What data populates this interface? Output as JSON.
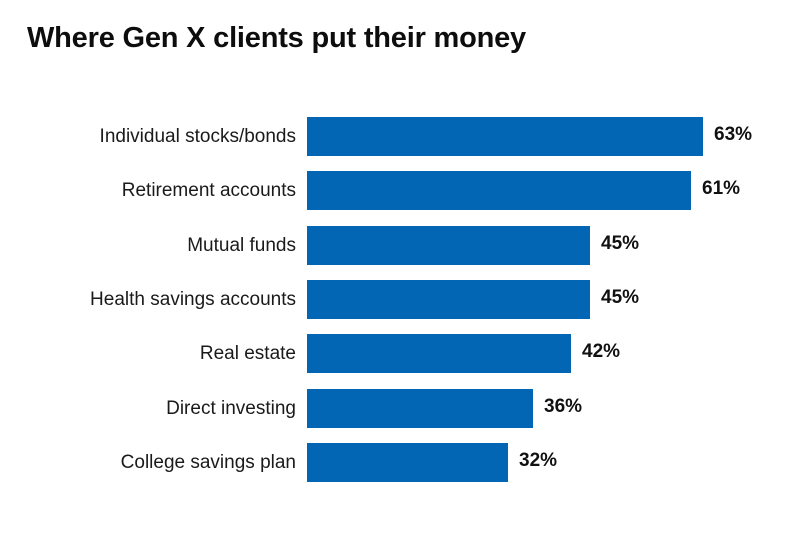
{
  "chart_data": {
    "type": "bar",
    "orientation": "horizontal",
    "title": "Where Gen X clients put their money",
    "xlabel": "",
    "ylabel": "",
    "categories": [
      "Individual stocks/bonds",
      "Retirement accounts",
      "Mutual funds",
      "Health savings accounts",
      "Real estate",
      "Direct investing",
      "College savings plan"
    ],
    "values": [
      63,
      61,
      45,
      45,
      42,
      36,
      32
    ],
    "value_labels": [
      "63%",
      "61%",
      "45%",
      "45%",
      "42%",
      "36%",
      "32%"
    ],
    "unit": "%",
    "grid": false,
    "legend": "none",
    "bar_color": "#0366b4"
  },
  "rows": [
    {
      "label": "Individual stocks/bonds",
      "value": 63,
      "value_label": "63%"
    },
    {
      "label": "Retirement accounts",
      "value": 61,
      "value_label": "61%"
    },
    {
      "label": "Mutual funds",
      "value": 45,
      "value_label": "45%"
    },
    {
      "label": "Health savings accounts",
      "value": 45,
      "value_label": "45%"
    },
    {
      "label": "Real estate",
      "value": 42,
      "value_label": "42%"
    },
    {
      "label": "Direct investing",
      "value": 36,
      "value_label": "36%"
    },
    {
      "label": "College savings plan",
      "value": 32,
      "value_label": "32%"
    }
  ]
}
